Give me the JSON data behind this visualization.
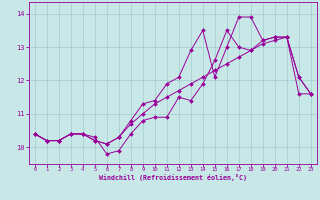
{
  "xlabel": "Windchill (Refroidissement éolien,°C)",
  "xlim": [
    -0.5,
    23.5
  ],
  "ylim": [
    9.5,
    14.35
  ],
  "xticks": [
    0,
    1,
    2,
    3,
    4,
    5,
    6,
    7,
    8,
    9,
    10,
    11,
    12,
    13,
    14,
    15,
    16,
    17,
    18,
    19,
    20,
    21,
    22,
    23
  ],
  "yticks": [
    10,
    11,
    12,
    13,
    14
  ],
  "line_color": "#990099",
  "bg_color": "#c8e8e8",
  "grid_color": "#a0cccc",
  "series": [
    [
      10.4,
      10.2,
      10.2,
      10.4,
      10.4,
      10.3,
      9.8,
      9.9,
      10.4,
      10.8,
      10.9,
      10.9,
      11.5,
      11.4,
      11.9,
      12.6,
      13.5,
      13.0,
      12.9,
      13.2,
      13.3,
      13.3,
      12.1,
      11.6
    ],
    [
      10.4,
      10.2,
      10.2,
      10.4,
      10.4,
      10.2,
      10.1,
      10.3,
      10.8,
      11.3,
      11.4,
      11.9,
      12.1,
      12.9,
      13.5,
      12.1,
      13.0,
      13.9,
      13.9,
      13.2,
      13.3,
      13.3,
      12.1,
      11.6
    ],
    [
      10.4,
      10.2,
      10.2,
      10.4,
      10.4,
      10.2,
      10.1,
      10.3,
      10.7,
      11.0,
      11.3,
      11.5,
      11.7,
      11.9,
      12.1,
      12.3,
      12.5,
      12.7,
      12.9,
      13.1,
      13.2,
      13.3,
      11.6,
      11.6
    ]
  ]
}
